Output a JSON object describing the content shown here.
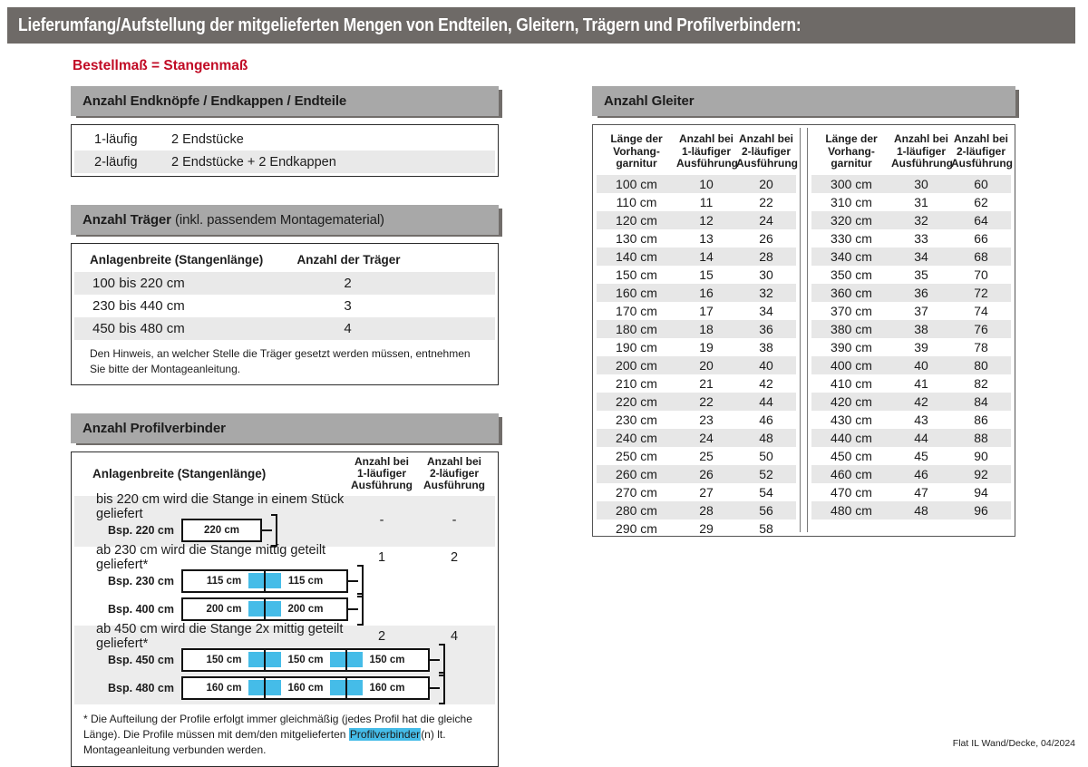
{
  "page": {
    "banner": "Lieferumfang/Aufstellung der mitgelieferten Mengen von Endteilen, Gleitern, Trägern und Profilverbindern:",
    "subtitle": "Bestellmaß = Stangenmaß",
    "footer": "Flat IL Wand/Decke, 04/2024"
  },
  "colors": {
    "banner_bg": "#6e6a67",
    "band_bg": "#a8a8a8",
    "accent_red": "#c10b25",
    "highlight_blue": "#45bce8",
    "row_shade": "#e9e9e9"
  },
  "endteile": {
    "header": "Anzahl Endknöpfe / Endkappen / Endteile",
    "rows": [
      {
        "label": "1-läufig",
        "value": "2 Endstücke"
      },
      {
        "label": "2-läufig",
        "value": "2 Endstücke + 2 Endkappen"
      }
    ]
  },
  "traeger": {
    "header_bold": "Anzahl Träger",
    "header_rest": " (inkl. passendem Montagematerial)",
    "col1": "Anlagenbreite (Stangenlänge)",
    "col2": "Anzahl der Träger",
    "rows": [
      {
        "range": "100 bis 220 cm",
        "count": "2"
      },
      {
        "range": "230 bis 440 cm",
        "count": "3"
      },
      {
        "range": "450 bis 480 cm",
        "count": "4"
      }
    ],
    "note": "Den Hinweis, an welcher Stelle die Träger gesetzt werden müssen, entnehmen Sie bitte der Montageanleitung."
  },
  "profilverbinder": {
    "header": "Anzahl Profilverbinder",
    "col1": "Anlagenbreite (Stangenlänge)",
    "col2": "Anzahl bei\n1-läufiger\nAusführung",
    "col3": "Anzahl bei\n2-läufiger\nAusführung",
    "rows": [
      {
        "text": "bis 220 cm wird die Stange in einem Stück geliefert",
        "v1": "-",
        "v2": "-",
        "shaded": true,
        "values_centered": true,
        "diagrams": [
          {
            "label": "Bsp. 220 cm",
            "segments": [
              "220 cm"
            ]
          }
        ]
      },
      {
        "text": "ab 230 cm wird die Stange mittig geteilt geliefert*",
        "v1": "1",
        "v2": "2",
        "shaded": false,
        "values_centered": false,
        "diagrams": [
          {
            "label": "Bsp. 230 cm",
            "segments": [
              "115 cm",
              "115 cm"
            ]
          },
          {
            "label": "Bsp. 400 cm",
            "segments": [
              "200 cm",
              "200 cm"
            ]
          }
        ]
      },
      {
        "text": "ab 450 cm wird die Stange 2x mittig geteilt geliefert*",
        "v1": "2",
        "v2": "4",
        "shaded": true,
        "values_centered": false,
        "diagrams": [
          {
            "label": "Bsp. 450 cm",
            "segments": [
              "150 cm",
              "150 cm",
              "150 cm"
            ]
          },
          {
            "label": "Bsp. 480 cm",
            "segments": [
              "160 cm",
              "160 cm",
              "160 cm"
            ]
          }
        ]
      }
    ],
    "footnote_pre": "* Die Aufteilung der Profile erfolgt immer gleichmäßig (jedes Profil hat die gleiche Länge). Die Profile müssen mit dem/den mitgelieferten ",
    "footnote_highlight": "Profilverbinder",
    "footnote_post": "(n) lt. Montageanleitung verbunden werden."
  },
  "gleiter": {
    "header": "Anzahl Gleiter",
    "col_headers": [
      "Länge der\nVorhang-\ngarnitur",
      "Anzahl bei\n1-läufiger\nAusführung",
      "Anzahl bei\n2-läufiger\nAusführung"
    ],
    "left_rows": [
      [
        "100 cm",
        "10",
        "20"
      ],
      [
        "110 cm",
        "11",
        "22"
      ],
      [
        "120 cm",
        "12",
        "24"
      ],
      [
        "130 cm",
        "13",
        "26"
      ],
      [
        "140 cm",
        "14",
        "28"
      ],
      [
        "150 cm",
        "15",
        "30"
      ],
      [
        "160 cm",
        "16",
        "32"
      ],
      [
        "170 cm",
        "17",
        "34"
      ],
      [
        "180 cm",
        "18",
        "36"
      ],
      [
        "190 cm",
        "19",
        "38"
      ],
      [
        "200 cm",
        "20",
        "40"
      ],
      [
        "210 cm",
        "21",
        "42"
      ],
      [
        "220 cm",
        "22",
        "44"
      ],
      [
        "230 cm",
        "23",
        "46"
      ],
      [
        "240 cm",
        "24",
        "48"
      ],
      [
        "250 cm",
        "25",
        "50"
      ],
      [
        "260 cm",
        "26",
        "52"
      ],
      [
        "270 cm",
        "27",
        "54"
      ],
      [
        "280 cm",
        "28",
        "56"
      ],
      [
        "290 cm",
        "29",
        "58"
      ]
    ],
    "right_rows": [
      [
        "300 cm",
        "30",
        "60"
      ],
      [
        "310 cm",
        "31",
        "62"
      ],
      [
        "320 cm",
        "32",
        "64"
      ],
      [
        "330 cm",
        "33",
        "66"
      ],
      [
        "340 cm",
        "34",
        "68"
      ],
      [
        "350 cm",
        "35",
        "70"
      ],
      [
        "360 cm",
        "36",
        "72"
      ],
      [
        "370 cm",
        "37",
        "74"
      ],
      [
        "380 cm",
        "38",
        "76"
      ],
      [
        "390 cm",
        "39",
        "78"
      ],
      [
        "400 cm",
        "40",
        "80"
      ],
      [
        "410 cm",
        "41",
        "82"
      ],
      [
        "420 cm",
        "42",
        "84"
      ],
      [
        "430 cm",
        "43",
        "86"
      ],
      [
        "440 cm",
        "44",
        "88"
      ],
      [
        "450 cm",
        "45",
        "90"
      ],
      [
        "460 cm",
        "46",
        "92"
      ],
      [
        "470 cm",
        "47",
        "94"
      ],
      [
        "480 cm",
        "48",
        "96"
      ]
    ]
  }
}
